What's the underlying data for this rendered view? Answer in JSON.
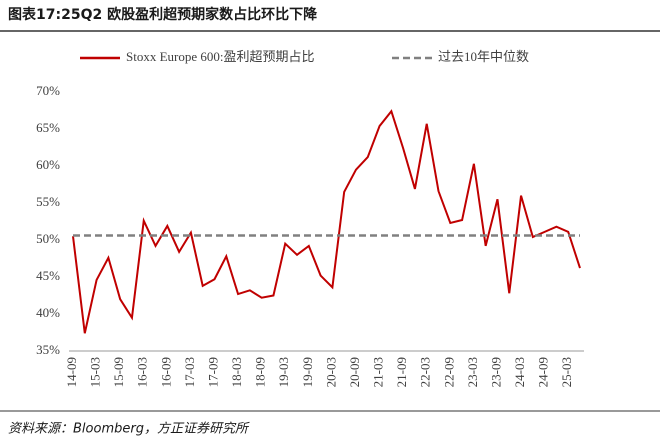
{
  "chart_data": {
    "type": "line",
    "title": "图表17:25Q2 欧股盈利超预期家数占比环比下降",
    "source": "资料来源：Bloomberg，方正证券研究所",
    "categories": [
      "14-09",
      null,
      "15-03",
      null,
      "15-09",
      null,
      "16-03",
      null,
      "16-09",
      null,
      "17-03",
      null,
      "17-09",
      null,
      "18-03",
      null,
      "18-09",
      null,
      "19-03",
      null,
      "19-09",
      null,
      "20-03",
      null,
      "20-09",
      null,
      "21-03",
      null,
      "21-09",
      null,
      "22-03",
      null,
      "22-09",
      null,
      "23-03",
      null,
      "23-09",
      null,
      "24-03",
      null,
      "24-09",
      null,
      "25-03",
      null
    ],
    "series": [
      {
        "name": "Stoxx Europe 600:盈利超预期占比",
        "color": "#c00000",
        "dash": false,
        "values": [
          50.5,
          37.4,
          44.6,
          47.6,
          42.0,
          39.5,
          52.6,
          49.2,
          51.9,
          48.4,
          51.0,
          43.8,
          44.7,
          47.8,
          42.7,
          43.2,
          42.2,
          42.5,
          49.5,
          48.0,
          49.2,
          45.2,
          43.6,
          56.5,
          59.5,
          61.2,
          65.4,
          67.4,
          62.4,
          56.9,
          65.7,
          56.6,
          52.3,
          52.7,
          60.3,
          49.2,
          55.5,
          42.8,
          56.0,
          50.4,
          51.1,
          51.8,
          51.1,
          46.2
        ]
      },
      {
        "name": "过去10年中位数",
        "color": "#808080",
        "dash": true,
        "values": [
          50.6,
          50.6,
          50.6,
          50.6,
          50.6,
          50.6,
          50.6,
          50.6,
          50.6,
          50.6,
          50.6,
          50.6,
          50.6,
          50.6,
          50.6,
          50.6,
          50.6,
          50.6,
          50.6,
          50.6,
          50.6,
          50.6,
          50.6,
          50.6,
          50.6,
          50.6,
          50.6,
          50.6,
          50.6,
          50.6,
          50.6,
          50.6,
          50.6,
          50.6,
          50.6,
          50.6,
          50.6,
          50.6,
          50.6,
          50.6,
          50.6,
          50.6,
          50.6,
          50.6
        ]
      }
    ],
    "ylim": [
      35,
      70
    ],
    "yticks": [
      {
        "value": 35,
        "label": "35%"
      },
      {
        "value": 40,
        "label": "40%"
      },
      {
        "value": 45,
        "label": "45%"
      },
      {
        "value": 50,
        "label": "50%"
      },
      {
        "value": 55,
        "label": "55%"
      },
      {
        "value": 60,
        "label": "60%"
      },
      {
        "value": 65,
        "label": "65%"
      },
      {
        "value": 70,
        "label": "70%"
      }
    ],
    "grid": false,
    "legend": "top"
  }
}
